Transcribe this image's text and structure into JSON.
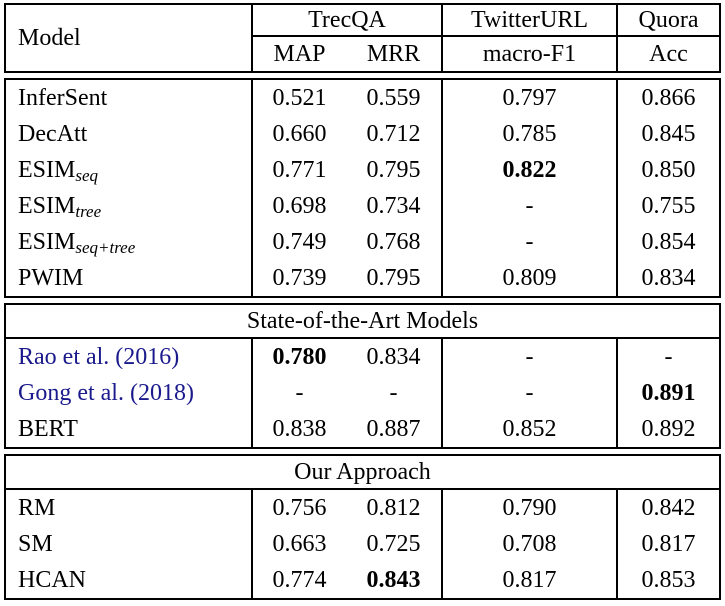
{
  "colors": {
    "text": "#000000",
    "border": "#000000",
    "citation": "#1a1a8c",
    "background": "#ffffff"
  },
  "header": {
    "model_label": "Model",
    "groups": [
      {
        "label": "TrecQA",
        "subcols": [
          "MAP",
          "MRR"
        ]
      },
      {
        "label": "TwitterURL",
        "subcols": [
          "macro-F1"
        ]
      },
      {
        "label": "Quora",
        "subcols": [
          "Acc"
        ]
      }
    ]
  },
  "sections": [
    {
      "title": null,
      "rows": [
        {
          "model": "InferSent",
          "values": [
            "0.521",
            "0.559",
            "0.797",
            "0.866"
          ],
          "bold": [
            false,
            false,
            false,
            false
          ]
        },
        {
          "model": "DecAtt",
          "values": [
            "0.660",
            "0.712",
            "0.785",
            "0.845"
          ],
          "bold": [
            false,
            false,
            false,
            false
          ]
        },
        {
          "model": "ESIM",
          "model_sub": "seq",
          "values": [
            "0.771",
            "0.795",
            "0.822",
            "0.850"
          ],
          "bold": [
            false,
            false,
            true,
            false
          ]
        },
        {
          "model": "ESIM",
          "model_sub": "tree",
          "values": [
            "0.698",
            "0.734",
            "-",
            "0.755"
          ],
          "bold": [
            false,
            false,
            false,
            false
          ]
        },
        {
          "model": "ESIM",
          "model_sub": "seq+tree",
          "values": [
            "0.749",
            "0.768",
            "-",
            "0.854"
          ],
          "bold": [
            false,
            false,
            false,
            false
          ]
        },
        {
          "model": "PWIM",
          "values": [
            "0.739",
            "0.795",
            "0.809",
            "0.834"
          ],
          "bold": [
            false,
            false,
            false,
            false
          ]
        }
      ]
    },
    {
      "title": "State-of-the-Art Models",
      "rows": [
        {
          "model": "Rao et al. (2016)",
          "citation": true,
          "values": [
            "0.780",
            "0.834",
            "-",
            "-"
          ],
          "bold": [
            true,
            false,
            false,
            false
          ]
        },
        {
          "model": "Gong et al. (2018)",
          "citation": true,
          "values": [
            "-",
            "-",
            "-",
            "0.891"
          ],
          "bold": [
            false,
            false,
            false,
            true
          ]
        },
        {
          "model": "BERT",
          "values": [
            "0.838",
            "0.887",
            "0.852",
            "0.892"
          ],
          "bold": [
            false,
            false,
            false,
            false
          ]
        }
      ]
    },
    {
      "title": "Our Approach",
      "rows": [
        {
          "model": "RM",
          "values": [
            "0.756",
            "0.812",
            "0.790",
            "0.842"
          ],
          "bold": [
            false,
            false,
            false,
            false
          ]
        },
        {
          "model": "SM",
          "values": [
            "0.663",
            "0.725",
            "0.708",
            "0.817"
          ],
          "bold": [
            false,
            false,
            false,
            false
          ]
        },
        {
          "model": "HCAN",
          "values": [
            "0.774",
            "0.843",
            "0.817",
            "0.853"
          ],
          "bold": [
            false,
            true,
            false,
            false
          ]
        }
      ]
    }
  ]
}
